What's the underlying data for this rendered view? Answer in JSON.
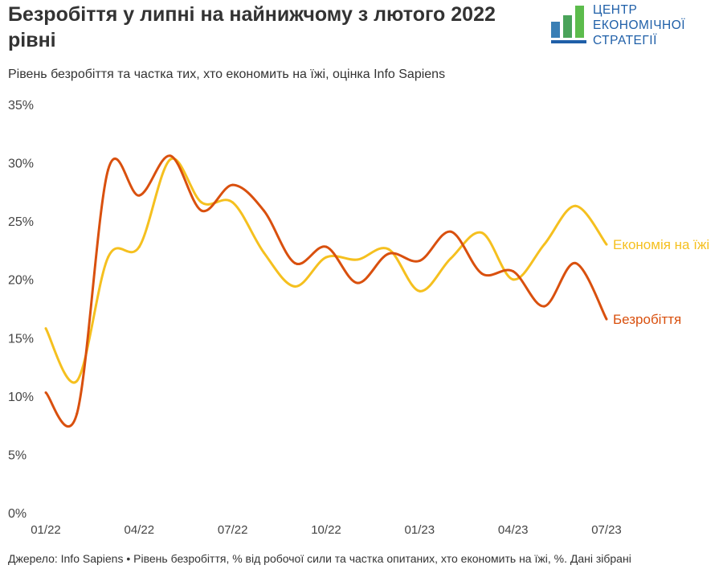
{
  "header": {
    "title": "Безробіття у липні на найнижчому з лютого 2022 рівні",
    "subtitle": "Рівень безробіття та частка тих, хто економить на їжі, оцінка Info Sapiens"
  },
  "logo": {
    "lines": [
      "ЦЕНТР",
      "ЕКОНОМІЧНОЇ",
      "СТРАТЕГІЇ"
    ]
  },
  "footer": {
    "text": "Джерело: Info Sapiens • Рівень безробіття, % від робочої сили та частка опитаних, хто економить на їжі, %. Дані зібрані"
  },
  "chart_data": {
    "type": "line",
    "x": [
      "01/22",
      "02/22",
      "03/22",
      "04/22",
      "05/22",
      "06/22",
      "07/22",
      "08/22",
      "09/22",
      "10/22",
      "11/22",
      "12/22",
      "01/23",
      "02/23",
      "03/23",
      "04/23",
      "05/23",
      "06/23",
      "07/23"
    ],
    "xticks": [
      "01/22",
      "04/22",
      "07/22",
      "10/22",
      "01/23",
      "04/23",
      "07/23"
    ],
    "yticks": [
      "0%",
      "5%",
      "10%",
      "15%",
      "20%",
      "25%",
      "30%",
      "35%"
    ],
    "ylim": [
      0,
      35
    ],
    "series": [
      {
        "name": "Економія на їжі",
        "color": "#f5c01f",
        "values": [
          15.8,
          11.3,
          21.9,
          22.8,
          30.3,
          26.6,
          26.6,
          22.3,
          19.4,
          21.9,
          21.7,
          22.6,
          19.0,
          21.8,
          24.0,
          20.0,
          23.0,
          26.3,
          23.0
        ]
      },
      {
        "name": "Безробіття",
        "color": "#d9500e",
        "values": [
          10.3,
          8.5,
          29.4,
          27.2,
          30.6,
          25.9,
          28.1,
          25.9,
          21.4,
          22.8,
          19.7,
          22.2,
          21.6,
          24.1,
          20.5,
          20.7,
          17.7,
          21.4,
          16.6
        ]
      }
    ]
  }
}
